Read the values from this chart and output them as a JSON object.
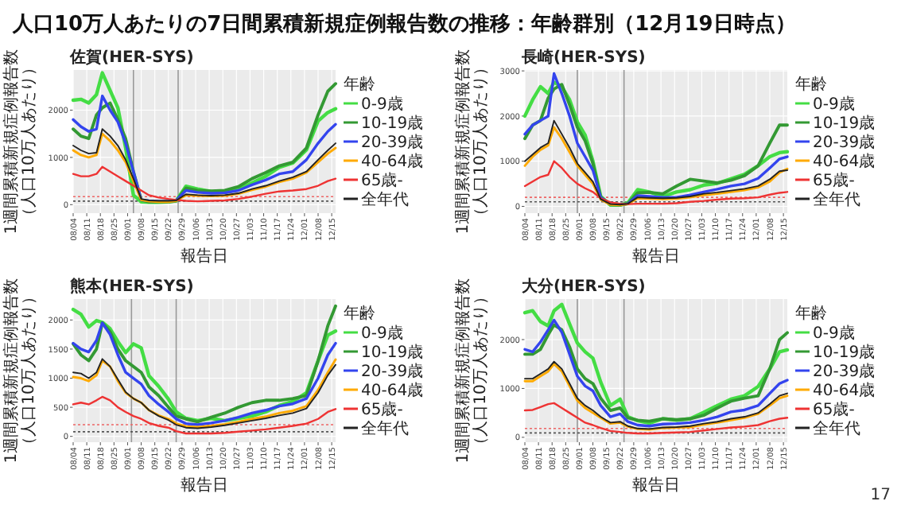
{
  "chart_data": [
    {
      "type": "line",
      "title": "佐賀(HER-SYS)",
      "xlabel": "報告日",
      "ylabel": "1週間累積新規症例報告数（人口10万人あたり）",
      "legend_title": "年齢",
      "legend": "right",
      "grid": true,
      "annotations": [
        "人口10万人あたりの7日間累積新規症例報告数の推移：年齢群別（12月19日時点）",
        "17"
      ],
      "x": [
        "--08-04",
        "--08-08",
        "--08-12",
        "--08-16",
        "--08-19",
        "--08-23",
        "--08-27",
        "--08-31",
        "--09-04",
        "--09-08",
        "--09-12",
        "--09-17",
        "--09-22",
        "--09-26",
        "--10-01",
        "--10-07",
        "--10-14",
        "--10-21",
        "--10-28",
        "--11-04",
        "--11-11",
        "--11-18",
        "--11-25",
        "--12-02",
        "--12-08",
        "--12-13",
        "--12-17"
      ],
      "xlim": [
        "--08-04",
        "--12-17"
      ],
      "ylim": [
        -180,
        2850
      ],
      "yticks": [
        0,
        1000,
        2000
      ],
      "xticks": [
        {
          "value": "--08-04",
          "label": "08/04"
        },
        {
          "value": "--08-11",
          "label": "08/11"
        },
        {
          "value": "--08-18",
          "label": "08/18"
        },
        {
          "value": "--08-25",
          "label": "08/25"
        },
        {
          "value": "--09-01",
          "label": "09/01"
        },
        {
          "value": "--09-08",
          "label": "09/08"
        },
        {
          "value": "--09-15",
          "label": "09/15"
        },
        {
          "value": "--09-22",
          "label": "09/22"
        },
        {
          "value": "--09-29",
          "label": "09/29"
        },
        {
          "value": "--10-06",
          "label": "10/06"
        },
        {
          "value": "--10-13",
          "label": "10/13"
        },
        {
          "value": "--10-20",
          "label": "10/20"
        },
        {
          "value": "--10-27",
          "label": "10/27"
        },
        {
          "value": "--11-03",
          "label": "11/03"
        },
        {
          "value": "--11-10",
          "label": "11/10"
        },
        {
          "value": "--11-17",
          "label": "11/17"
        },
        {
          "value": "--11-24",
          "label": "11/24"
        },
        {
          "value": "--12-01",
          "label": "12/01"
        },
        {
          "value": "--12-08",
          "label": "12/08"
        },
        {
          "value": "--12-15",
          "label": "12/15"
        }
      ],
      "ref_lines": [
        {
          "axis": "x",
          "value": "--09-04",
          "color": "#999999"
        },
        {
          "axis": "x",
          "value": "--09-27",
          "color": "#999999"
        },
        {
          "axis": "y",
          "value": 170,
          "color": "#ee6666",
          "line_style": "dotted"
        },
        {
          "axis": "y",
          "value": 75,
          "color": "#555555",
          "line_style": "dotted"
        }
      ],
      "series": [
        {
          "name": "0-9歳",
          "color": "#44dd44",
          "values": [
            2210,
            2230,
            2150,
            2330,
            2790,
            2420,
            2050,
            1200,
            200,
            60,
            50,
            50,
            60,
            80,
            390,
            330,
            280,
            260,
            320,
            460,
            600,
            790,
            880,
            1160,
            1770,
            1950,
            2030
          ]
        },
        {
          "name": "10-19歳",
          "color": "#339933",
          "values": [
            1600,
            1450,
            1400,
            1900,
            2050,
            2150,
            1800,
            1400,
            700,
            100,
            60,
            60,
            60,
            80,
            350,
            300,
            290,
            300,
            380,
            550,
            680,
            820,
            900,
            1200,
            1900,
            2400,
            2560
          ]
        },
        {
          "name": "20-39歳",
          "color": "#3344ee",
          "values": [
            1800,
            1650,
            1550,
            1600,
            2300,
            2000,
            1750,
            1300,
            700,
            100,
            80,
            70,
            70,
            90,
            300,
            260,
            240,
            250,
            300,
            420,
            520,
            650,
            700,
            950,
            1300,
            1550,
            1700
          ]
        },
        {
          "name": "40-64歳",
          "color": "#ffaa00",
          "values": [
            1150,
            1050,
            1000,
            1050,
            1500,
            1350,
            1150,
            900,
            500,
            100,
            70,
            60,
            60,
            80,
            200,
            190,
            180,
            190,
            230,
            310,
            380,
            480,
            550,
            680,
            900,
            1080,
            1200
          ]
        },
        {
          "name": "65歳-",
          "color": "#ee3333",
          "values": [
            650,
            600,
            600,
            650,
            800,
            700,
            600,
            500,
            400,
            300,
            200,
            150,
            120,
            100,
            80,
            70,
            80,
            90,
            120,
            170,
            230,
            280,
            300,
            330,
            400,
            500,
            550
          ]
        },
        {
          "name": "全年代",
          "color": "#222222",
          "values": [
            1250,
            1150,
            1080,
            1100,
            1600,
            1450,
            1250,
            950,
            550,
            120,
            90,
            80,
            80,
            90,
            220,
            200,
            190,
            200,
            240,
            330,
            400,
            500,
            580,
            700,
            950,
            1150,
            1300
          ]
        }
      ]
    },
    {
      "type": "line",
      "title": "長崎(HER-SYS)",
      "xlabel": "報告日",
      "ylabel": "1週間累積新規症例報告数（人口10万人あたり）",
      "legend_title": "年齢",
      "legend": "right",
      "grid": true,
      "x": [
        "--08-04",
        "--08-08",
        "--08-12",
        "--08-16",
        "--08-19",
        "--08-23",
        "--08-27",
        "--08-31",
        "--09-04",
        "--09-08",
        "--09-12",
        "--09-17",
        "--09-22",
        "--09-26",
        "--10-01",
        "--10-07",
        "--10-14",
        "--10-21",
        "--10-28",
        "--11-04",
        "--11-11",
        "--11-18",
        "--11-25",
        "--12-02",
        "--12-08",
        "--12-13",
        "--12-17"
      ],
      "xlim": [
        "--08-04",
        "--12-17"
      ],
      "ylim": [
        -150,
        3020
      ],
      "yticks": [
        0,
        1000,
        2000,
        3000
      ],
      "xticks": [
        {
          "value": "--08-04",
          "label": "08/04"
        },
        {
          "value": "--08-11",
          "label": "08/11"
        },
        {
          "value": "--08-18",
          "label": "08/18"
        },
        {
          "value": "--08-25",
          "label": "08/25"
        },
        {
          "value": "--09-01",
          "label": "09/01"
        },
        {
          "value": "--09-08",
          "label": "09/08"
        },
        {
          "value": "--09-15",
          "label": "09/15"
        },
        {
          "value": "--09-22",
          "label": "09/22"
        },
        {
          "value": "--09-29",
          "label": "09/29"
        },
        {
          "value": "--10-06",
          "label": "10/06"
        },
        {
          "value": "--10-13",
          "label": "10/13"
        },
        {
          "value": "--10-20",
          "label": "10/20"
        },
        {
          "value": "--10-27",
          "label": "10/27"
        },
        {
          "value": "--11-03",
          "label": "11/03"
        },
        {
          "value": "--11-10",
          "label": "11/10"
        },
        {
          "value": "--11-17",
          "label": "11/17"
        },
        {
          "value": "--11-24",
          "label": "11/24"
        },
        {
          "value": "--12-01",
          "label": "12/01"
        },
        {
          "value": "--12-08",
          "label": "12/08"
        },
        {
          "value": "--12-15",
          "label": "12/15"
        }
      ],
      "ref_lines": [
        {
          "axis": "x",
          "value": "--08-31",
          "color": "#999999"
        },
        {
          "axis": "x",
          "value": "--09-24",
          "color": "#999999"
        },
        {
          "axis": "y",
          "value": 200,
          "color": "#ee6666",
          "line_style": "dotted"
        },
        {
          "axis": "y",
          "value": 100,
          "color": "#555555",
          "line_style": "dotted"
        }
      ],
      "series": [
        {
          "name": "0-9歳",
          "color": "#44dd44",
          "values": [
            2000,
            2360,
            2650,
            2500,
            2750,
            2650,
            2360,
            1870,
            1580,
            1000,
            220,
            30,
            30,
            80,
            370,
            320,
            220,
            320,
            370,
            470,
            510,
            610,
            710,
            900,
            1100,
            1190,
            1210
          ]
        },
        {
          "name": "10-19歳",
          "color": "#339933",
          "values": [
            1500,
            1800,
            1900,
            2400,
            2600,
            2700,
            2250,
            1750,
            1450,
            950,
            200,
            40,
            30,
            60,
            300,
            310,
            280,
            450,
            600,
            560,
            520,
            580,
            680,
            900,
            1400,
            1800,
            1800
          ]
        },
        {
          "name": "20-39歳",
          "color": "#3344ee",
          "values": [
            1600,
            1800,
            1900,
            2000,
            2940,
            2500,
            2000,
            1400,
            1100,
            800,
            200,
            50,
            40,
            60,
            240,
            220,
            200,
            200,
            250,
            320,
            380,
            450,
            500,
            620,
            850,
            1050,
            1100
          ]
        },
        {
          "name": "40-64歳",
          "color": "#ffaa00",
          "values": [
            900,
            1100,
            1250,
            1350,
            1750,
            1500,
            1200,
            900,
            700,
            500,
            150,
            40,
            30,
            50,
            180,
            170,
            160,
            170,
            200,
            250,
            280,
            320,
            360,
            420,
            550,
            750,
            830
          ]
        },
        {
          "name": "65歳-",
          "color": "#ee3333",
          "values": [
            450,
            550,
            650,
            700,
            1000,
            850,
            650,
            500,
            400,
            320,
            180,
            90,
            60,
            50,
            60,
            60,
            60,
            70,
            100,
            120,
            150,
            170,
            180,
            200,
            260,
            300,
            320
          ]
        },
        {
          "name": "全年代",
          "color": "#222222",
          "values": [
            1000,
            1150,
            1300,
            1400,
            1900,
            1600,
            1300,
            950,
            750,
            550,
            160,
            50,
            40,
            60,
            200,
            190,
            180,
            190,
            220,
            280,
            310,
            350,
            390,
            450,
            600,
            780,
            800
          ]
        }
      ]
    },
    {
      "type": "line",
      "title": "熊本(HER-SYS)",
      "xlabel": "報告日",
      "ylabel": "1週間累積新規症例報告数（人口10万人あたり）",
      "legend_title": "年齢",
      "legend": "right",
      "grid": true,
      "x": [
        "--08-04",
        "--08-08",
        "--08-12",
        "--08-16",
        "--08-19",
        "--08-23",
        "--08-27",
        "--08-31",
        "--09-04",
        "--09-08",
        "--09-12",
        "--09-17",
        "--09-22",
        "--09-26",
        "--10-01",
        "--10-07",
        "--10-14",
        "--10-21",
        "--10-28",
        "--11-04",
        "--11-11",
        "--11-18",
        "--11-25",
        "--12-02",
        "--12-08",
        "--12-13",
        "--12-17"
      ],
      "xlim": [
        "--08-04",
        "--12-17"
      ],
      "ylim": [
        -100,
        2360
      ],
      "yticks": [
        0,
        500,
        1000,
        1500,
        2000
      ],
      "xticks": [
        {
          "value": "--08-04",
          "label": "08/04"
        },
        {
          "value": "--08-11",
          "label": "08/11"
        },
        {
          "value": "--08-18",
          "label": "08/18"
        },
        {
          "value": "--08-25",
          "label": "08/25"
        },
        {
          "value": "--09-01",
          "label": "09/01"
        },
        {
          "value": "--09-08",
          "label": "09/08"
        },
        {
          "value": "--09-15",
          "label": "09/15"
        },
        {
          "value": "--09-22",
          "label": "09/22"
        },
        {
          "value": "--09-29",
          "label": "09/29"
        },
        {
          "value": "--10-06",
          "label": "10/06"
        },
        {
          "value": "--10-13",
          "label": "10/13"
        },
        {
          "value": "--10-20",
          "label": "10/20"
        },
        {
          "value": "--10-27",
          "label": "10/27"
        },
        {
          "value": "--11-03",
          "label": "11/03"
        },
        {
          "value": "--11-10",
          "label": "11/10"
        },
        {
          "value": "--11-17",
          "label": "11/17"
        },
        {
          "value": "--11-24",
          "label": "11/24"
        },
        {
          "value": "--12-01",
          "label": "12/01"
        },
        {
          "value": "--12-08",
          "label": "12/08"
        },
        {
          "value": "--12-15",
          "label": "12/15"
        }
      ],
      "ref_lines": [
        {
          "axis": "x",
          "value": "--09-03",
          "color": "#999999"
        },
        {
          "axis": "x",
          "value": "--09-26",
          "color": "#999999"
        },
        {
          "axis": "y",
          "value": 200,
          "color": "#ee6666",
          "line_style": "dotted"
        },
        {
          "axis": "y",
          "value": 80,
          "color": "#555555",
          "line_style": "dotted"
        }
      ],
      "series": [
        {
          "name": "0-9歳",
          "color": "#44dd44",
          "values": [
            2180,
            2100,
            1880,
            1990,
            1960,
            1850,
            1630,
            1440,
            1590,
            1520,
            1040,
            860,
            640,
            420,
            310,
            270,
            310,
            270,
            310,
            350,
            420,
            530,
            600,
            750,
            1300,
            1740,
            1810
          ]
        },
        {
          "name": "10-19歳",
          "color": "#339933",
          "values": [
            1590,
            1400,
            1300,
            1500,
            1950,
            1800,
            1500,
            1300,
            1200,
            1100,
            850,
            700,
            500,
            350,
            300,
            250,
            330,
            400,
            500,
            580,
            620,
            620,
            650,
            700,
            1300,
            1900,
            2240
          ]
        },
        {
          "name": "20-39歳",
          "color": "#3344ee",
          "values": [
            1600,
            1500,
            1450,
            1650,
            1950,
            1750,
            1400,
            1100,
            1000,
            900,
            700,
            550,
            420,
            300,
            220,
            200,
            230,
            270,
            330,
            400,
            450,
            520,
            560,
            650,
            1000,
            1400,
            1600
          ]
        },
        {
          "name": "40-64歳",
          "color": "#ffaa00",
          "values": [
            1020,
            1000,
            950,
            1050,
            1300,
            1200,
            950,
            750,
            650,
            580,
            450,
            360,
            300,
            220,
            170,
            160,
            180,
            210,
            250,
            300,
            340,
            400,
            440,
            520,
            800,
            1100,
            1320
          ]
        },
        {
          "name": "65歳-",
          "color": "#ee3333",
          "values": [
            550,
            580,
            550,
            620,
            680,
            620,
            500,
            420,
            350,
            300,
            230,
            180,
            150,
            90,
            50,
            50,
            50,
            60,
            80,
            100,
            120,
            150,
            180,
            220,
            300,
            420,
            470
          ]
        },
        {
          "name": "全年代",
          "color": "#222222",
          "values": [
            1100,
            1080,
            1000,
            1100,
            1330,
            1200,
            980,
            760,
            650,
            580,
            450,
            350,
            280,
            200,
            150,
            140,
            160,
            190,
            230,
            270,
            310,
            360,
            400,
            480,
            750,
            1050,
            1230
          ]
        }
      ]
    },
    {
      "type": "line",
      "title": "大分(HER-SYS)",
      "xlabel": "報告日",
      "ylabel": "1週間累積新規症例報告数（人口10万人あたり）",
      "legend_title": "年齢",
      "legend": "right",
      "grid": true,
      "x": [
        "--08-04",
        "--08-08",
        "--08-12",
        "--08-16",
        "--08-19",
        "--08-23",
        "--08-27",
        "--08-31",
        "--09-04",
        "--09-08",
        "--09-12",
        "--09-17",
        "--09-22",
        "--09-26",
        "--10-01",
        "--10-07",
        "--10-14",
        "--10-21",
        "--10-28",
        "--11-04",
        "--11-11",
        "--11-18",
        "--11-25",
        "--12-02",
        "--12-08",
        "--12-13",
        "--12-17"
      ],
      "xlim": [
        "--08-04",
        "--12-17"
      ],
      "ylim": [
        -100,
        2830
      ],
      "yticks": [
        0,
        1000,
        2000
      ],
      "xticks": [
        {
          "value": "--08-04",
          "label": "08/04"
        },
        {
          "value": "--08-11",
          "label": "08/11"
        },
        {
          "value": "--08-18",
          "label": "08/18"
        },
        {
          "value": "--08-25",
          "label": "08/25"
        },
        {
          "value": "--09-01",
          "label": "09/01"
        },
        {
          "value": "--09-08",
          "label": "09/08"
        },
        {
          "value": "--09-15",
          "label": "09/15"
        },
        {
          "value": "--09-22",
          "label": "09/22"
        },
        {
          "value": "--09-29",
          "label": "09/29"
        },
        {
          "value": "--10-06",
          "label": "10/06"
        },
        {
          "value": "--10-13",
          "label": "10/13"
        },
        {
          "value": "--10-20",
          "label": "10/20"
        },
        {
          "value": "--10-27",
          "label": "10/27"
        },
        {
          "value": "--11-03",
          "label": "11/03"
        },
        {
          "value": "--11-10",
          "label": "11/10"
        },
        {
          "value": "--11-17",
          "label": "11/17"
        },
        {
          "value": "--11-24",
          "label": "11/24"
        },
        {
          "value": "--12-01",
          "label": "12/01"
        },
        {
          "value": "--12-08",
          "label": "12/08"
        },
        {
          "value": "--12-15",
          "label": "12/15"
        }
      ],
      "ref_lines": [
        {
          "axis": "x",
          "value": "--08-31",
          "color": "#999999"
        },
        {
          "axis": "x",
          "value": "--09-24",
          "color": "#999999"
        },
        {
          "axis": "y",
          "value": 180,
          "color": "#ee6666",
          "line_style": "dotted"
        },
        {
          "axis": "y",
          "value": 90,
          "color": "#555555",
          "line_style": "dotted"
        }
      ],
      "series": [
        {
          "name": "0-9歳",
          "color": "#44dd44",
          "values": [
            2550,
            2590,
            2370,
            2280,
            2590,
            2720,
            2320,
            1930,
            1750,
            1620,
            1130,
            650,
            780,
            420,
            340,
            290,
            380,
            350,
            380,
            510,
            650,
            780,
            850,
            1040,
            1400,
            1750,
            1790
          ]
        },
        {
          "name": "10-19歳",
          "color": "#339933",
          "values": [
            1700,
            1700,
            1800,
            2100,
            2300,
            2200,
            1850,
            1400,
            1200,
            1100,
            800,
            550,
            600,
            400,
            350,
            330,
            380,
            360,
            380,
            450,
            600,
            740,
            800,
            850,
            1400,
            2000,
            2140
          ]
        },
        {
          "name": "20-39歳",
          "color": "#3344ee",
          "values": [
            1800,
            1750,
            1950,
            2200,
            2400,
            2150,
            1700,
            1250,
            1050,
            950,
            650,
            420,
            480,
            320,
            250,
            230,
            270,
            280,
            300,
            350,
            420,
            520,
            560,
            650,
            900,
            1100,
            1170
          ]
        },
        {
          "name": "40-64歳",
          "color": "#ffaa00",
          "values": [
            1150,
            1150,
            1250,
            1350,
            1500,
            1350,
            1050,
            750,
            600,
            500,
            400,
            280,
            300,
            220,
            170,
            160,
            190,
            200,
            210,
            260,
            300,
            350,
            400,
            480,
            650,
            800,
            850
          ]
        },
        {
          "name": "65歳-",
          "color": "#ee3333",
          "values": [
            550,
            560,
            620,
            680,
            700,
            600,
            500,
            400,
            300,
            250,
            190,
            130,
            110,
            90,
            80,
            80,
            90,
            100,
            110,
            140,
            170,
            200,
            220,
            250,
            330,
            380,
            400
          ]
        },
        {
          "name": "全年代",
          "color": "#222222",
          "values": [
            1200,
            1200,
            1300,
            1400,
            1550,
            1400,
            1100,
            800,
            650,
            550,
            420,
            300,
            320,
            230,
            180,
            170,
            200,
            210,
            230,
            280,
            320,
            380,
            420,
            500,
            680,
            850,
            900
          ]
        }
      ]
    }
  ]
}
